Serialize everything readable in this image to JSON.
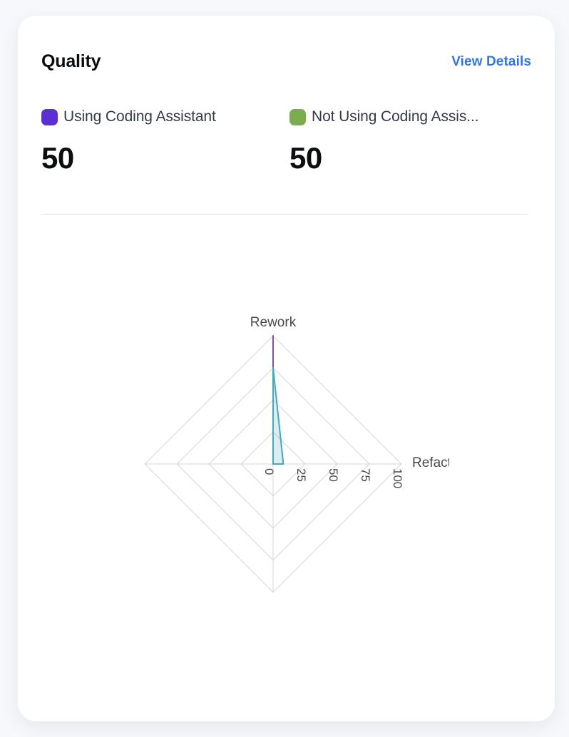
{
  "card": {
    "title": "Quality",
    "view_details_label": "View Details"
  },
  "legend": [
    {
      "label": "Using Coding Assistant",
      "value": "50",
      "color": "#5b2fd1"
    },
    {
      "label": "Not Using Coding Assis...",
      "value": "50",
      "color": "#7cac4d"
    }
  ],
  "chart_data": {
    "type": "radar",
    "axes": [
      {
        "label": "Rework",
        "position": "top"
      },
      {
        "label": "Refactor",
        "position": "right"
      },
      {
        "label": "",
        "position": "bottom"
      },
      {
        "label": "",
        "position": "left"
      }
    ],
    "radial_axis": {
      "min": 0,
      "max": 100,
      "ticks": [
        0,
        25,
        50,
        75,
        100
      ],
      "tick_rotation_deg": 90
    },
    "grid": {
      "rings": 4,
      "shape": "polygon",
      "color": "#d7d7d7"
    },
    "series": [
      {
        "name": "Using Coding Assistant",
        "stroke": "#7b4fb3",
        "fill": "none",
        "values": [
          100,
          0,
          0,
          0
        ]
      },
      {
        "name": "Not Using Coding Assis...",
        "stroke": "#45a8bc",
        "fill": "rgba(69,168,188,0.2)",
        "values": [
          75,
          8,
          0,
          0
        ]
      }
    ],
    "text_color": "#4a4a4a"
  },
  "colors": {
    "link_accent": "#3574dd",
    "card_background": "#ffffff",
    "page_background": "#f6f8fb"
  }
}
